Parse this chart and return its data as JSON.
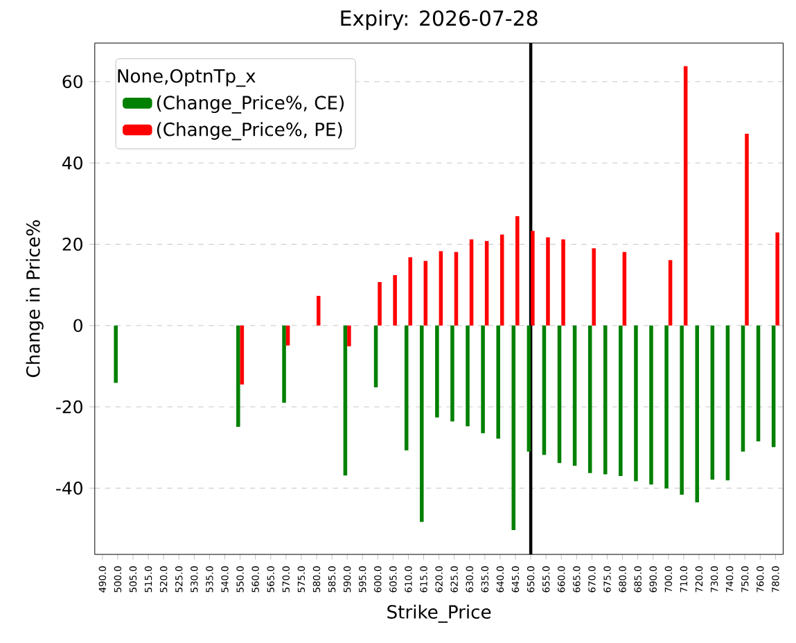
{
  "chart_data": {
    "type": "bar",
    "title": "Expiry: 2026-07-28",
    "xlabel": "Strike_Price",
    "ylabel": "Change in Price%",
    "legend_title": "None,OptnTp_x",
    "categories": [
      "490.0",
      "500.0",
      "505.0",
      "515.0",
      "520.0",
      "525.0",
      "530.0",
      "535.0",
      "540.0",
      "550.0",
      "560.0",
      "565.0",
      "570.0",
      "575.0",
      "580.0",
      "585.0",
      "590.0",
      "595.0",
      "600.0",
      "605.0",
      "610.0",
      "615.0",
      "620.0",
      "625.0",
      "630.0",
      "635.0",
      "640.0",
      "645.0",
      "650.0",
      "655.0",
      "660.0",
      "665.0",
      "670.0",
      "675.0",
      "680.0",
      "685.0",
      "690.0",
      "700.0",
      "710.0",
      "720.0",
      "730.0",
      "740.0",
      "750.0",
      "760.0",
      "780.0"
    ],
    "series": [
      {
        "name": "(Change_Price%, CE)",
        "color": "#008000",
        "values": [
          null,
          -14.1,
          null,
          null,
          null,
          null,
          null,
          null,
          null,
          -24.9,
          null,
          null,
          -19.0,
          null,
          null,
          null,
          -36.9,
          null,
          -15.2,
          null,
          -30.7,
          -48.3,
          -22.6,
          -23.6,
          -24.8,
          -26.5,
          -27.8,
          -50.3,
          -31.0,
          -31.8,
          -33.8,
          -34.5,
          -36.3,
          -36.6,
          -37.0,
          -38.3,
          -39.1,
          -40.1,
          -41.6,
          -43.5,
          -37.9,
          -38.1,
          -31.0,
          -28.5,
          -29.9
        ]
      },
      {
        "name": "(Change_Price%, PE)",
        "color": "#ff0000",
        "values": [
          null,
          null,
          null,
          null,
          null,
          null,
          null,
          null,
          null,
          -14.5,
          null,
          null,
          -4.9,
          null,
          7.3,
          null,
          -5.1,
          null,
          10.7,
          12.4,
          16.8,
          15.9,
          18.3,
          18.1,
          21.2,
          20.8,
          22.4,
          26.9,
          23.3,
          21.7,
          21.2,
          null,
          19.0,
          null,
          18.1,
          null,
          null,
          16.1,
          63.8,
          null,
          null,
          null,
          47.2,
          null,
          22.9
        ]
      }
    ],
    "ylim": [
      -56.3,
      69.5
    ],
    "yticks": [
      -40,
      -20,
      0,
      20,
      40,
      60
    ],
    "grid": "y",
    "legend": "top left",
    "ref_lines": [
      {
        "axis": "x",
        "value": "650.0",
        "color": "#000000"
      }
    ]
  }
}
